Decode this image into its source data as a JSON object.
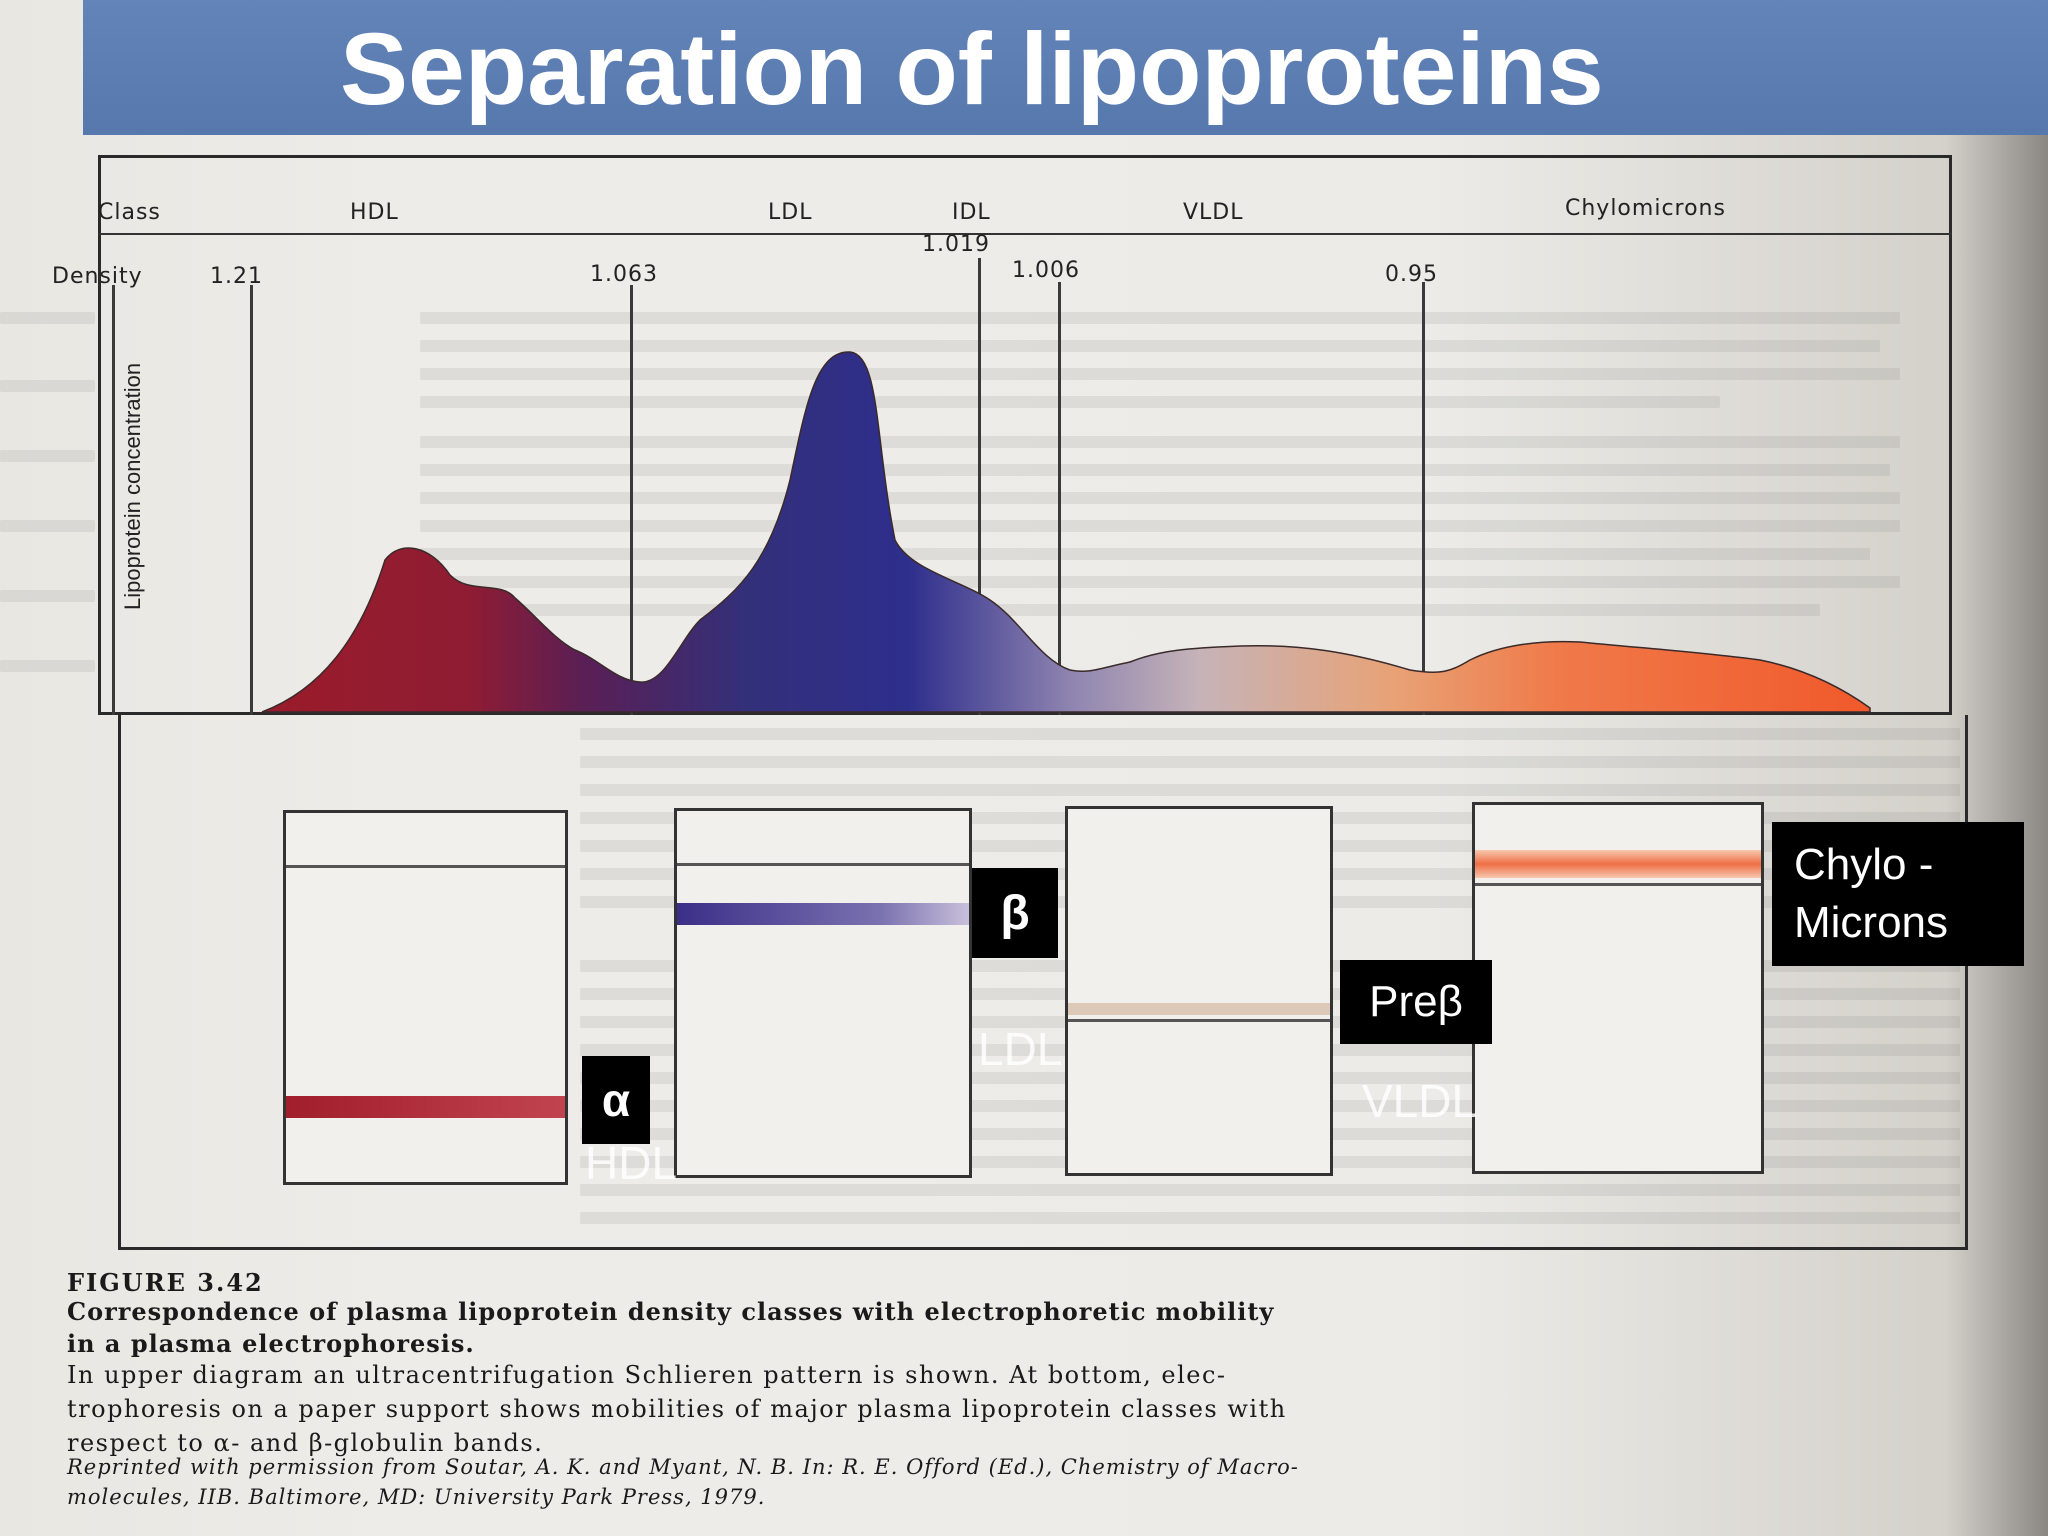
{
  "slide": {
    "title": "Separation of lipoproteins"
  },
  "diagram": {
    "class_label": "Class",
    "classes": [
      "HDL",
      "LDL",
      "IDL",
      "VLDL",
      "Chylomicrons"
    ],
    "density_label": "Density",
    "densities": [
      "1.21",
      "1.063",
      "1.019",
      "1.006",
      "0.95"
    ],
    "y_axis_label": "Lipoprotein concentration",
    "colors": {
      "hdl": "#9b1b2a",
      "ldl": "#2e2e8c",
      "idl": "#b49ab8",
      "vldl": "#e8a276",
      "chylomicrons": "#f0582a"
    }
  },
  "tags": {
    "alpha": "α",
    "beta": "β",
    "prebeta": "Preβ",
    "chylo_line1": "Chylo -",
    "chylo_line2": "Microns"
  },
  "overlay_labels": {
    "hdl": "HDL",
    "ldl": "LDL",
    "vldl": "VLDL"
  },
  "caption": {
    "figure": "FIGURE 3.42",
    "bold_line1": "Correspondence of plasma lipoprotein density classes with electrophoretic mobility",
    "bold_line2": "in a plasma electrophoresis.",
    "body_line1": "In upper diagram an ultracentrifugation Schlieren pattern is shown. At bottom, elec-",
    "body_line2": "trophoresis on a paper support shows mobilities of major plasma lipoprotein classes with",
    "body_line3": "respect to α- and β-globulin bands.",
    "credit_line1": "Reprinted with permission from Soutar, A. K. and Myant, N. B. In: R. E. Offord (Ed.), Chemistry of Macro-",
    "credit_line2": "molecules, IIB. Baltimore, MD: University Park Press, 1979."
  }
}
